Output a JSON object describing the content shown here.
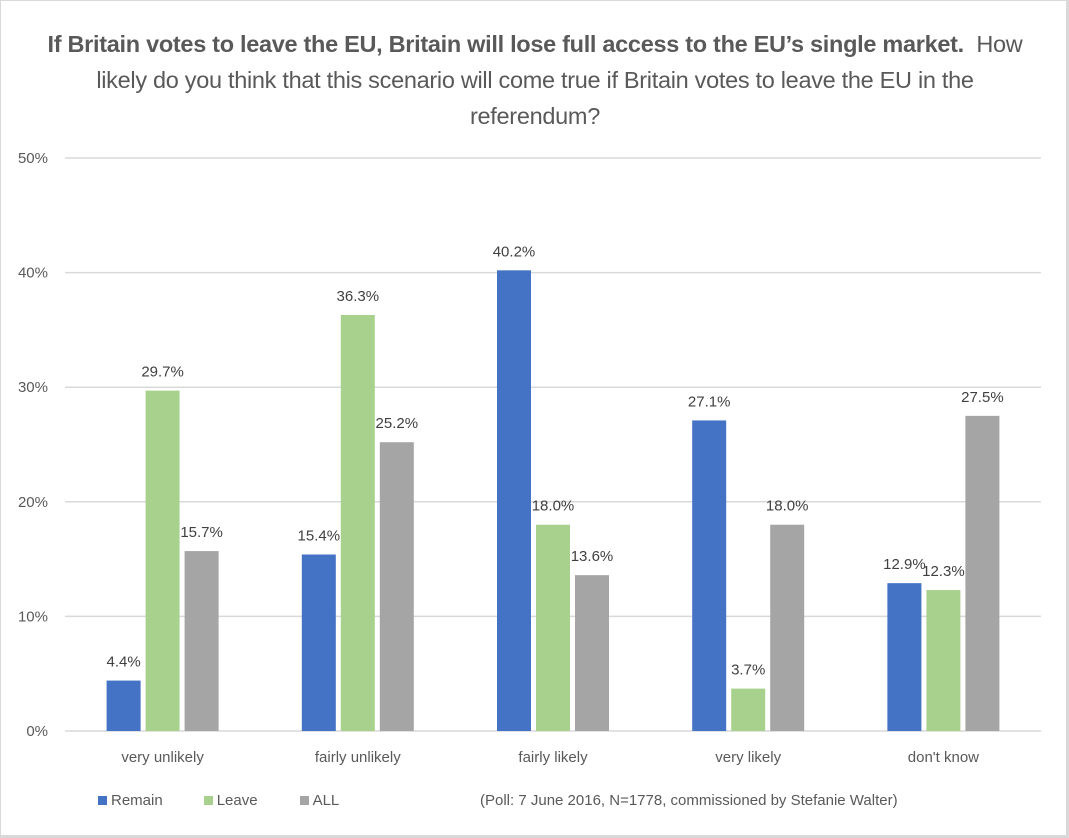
{
  "chart_data": {
    "type": "bar",
    "title_bold": "If Britain votes to leave the EU, Britain will lose full access to the EU’s single market.",
    "title_regular": "How likely do you think that this scenario will come true if Britain votes to leave the EU in the referendum?",
    "xlabel": "",
    "ylabel": "",
    "ylim": [
      0,
      50
    ],
    "yticks": [
      "0%",
      "10%",
      "20%",
      "30%",
      "40%",
      "50%"
    ],
    "ytick_values": [
      0,
      10,
      20,
      30,
      40,
      50
    ],
    "grid": true,
    "categories": [
      "very unlikely",
      "fairly unlikely",
      "fairly likely",
      "very likely",
      "don't know"
    ],
    "series": [
      {
        "name": "Remain",
        "color": "#4472c4",
        "values": [
          4.4,
          15.4,
          40.2,
          27.1,
          12.9
        ],
        "labels": [
          "4.4%",
          "15.4%",
          "40.2%",
          "27.1%",
          "12.9%"
        ]
      },
      {
        "name": "Leave",
        "color": "#a9d18e",
        "values": [
          29.7,
          36.3,
          18.0,
          3.7,
          12.3
        ],
        "labels": [
          "29.7%",
          "36.3%",
          "18.0%",
          "3.7%",
          "12.3%"
        ]
      },
      {
        "name": "ALL",
        "color": "#a5a5a5",
        "values": [
          15.7,
          25.2,
          13.6,
          18.0,
          27.5
        ],
        "labels": [
          "15.7%",
          "25.2%",
          "13.6%",
          "18.0%",
          "27.5%"
        ]
      }
    ],
    "legend_position": "bottom-left",
    "annotation": "(Poll: 7 June 2016, N=1778, commissioned by Stefanie Walter)"
  }
}
